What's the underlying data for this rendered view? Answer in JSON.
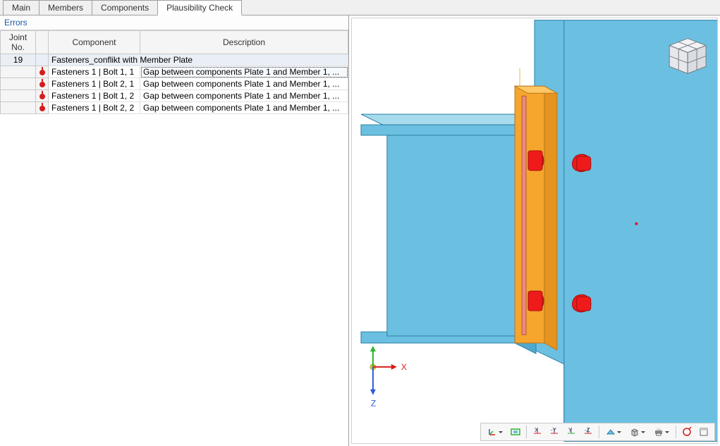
{
  "tabs": [
    "Main",
    "Members",
    "Components",
    "Plausibility Check"
  ],
  "active_tab": 3,
  "panel_title": "Errors",
  "columns": {
    "joint": "Joint\nNo.",
    "component": "Component",
    "description": "Description"
  },
  "group_row": {
    "joint": "19",
    "label": "Fasteners_conflikt with Member Plate"
  },
  "rows": [
    {
      "component": "Fasteners 1 | Bolt 1, 1",
      "description": "Gap between components Plate 1 and Member 1, ...",
      "selected": true
    },
    {
      "component": "Fasteners 1 | Bolt 2, 1",
      "description": "Gap between components Plate 1 and Member 1, ..."
    },
    {
      "component": "Fasteners 1 | Bolt 1, 2",
      "description": "Gap between components Plate 1 and Member 1, ..."
    },
    {
      "component": "Fasteners 1 | Bolt 2, 2",
      "description": "Gap between components Plate 1 and Member 1, ..."
    }
  ],
  "axes": {
    "x_label": "X",
    "z_label": "Z"
  },
  "colors": {
    "steel_fill": "#6bc0e2",
    "steel_stroke": "#2b7fa3",
    "flange_top": "#a8dbee",
    "plate_fill": "#f6a52d",
    "plate_stroke": "#b9781f",
    "bolt_fill": "#ef1b1b",
    "accent_red_dot": "#d81b1b",
    "gold_line": "#d9c24a",
    "axis_x": "#d81b1b",
    "axis_y": "#2bb52b",
    "axis_z": "#2b5bd8",
    "nav_cube_face": "#e6e8ec",
    "nav_cube_edge": "#7a7f87"
  },
  "toolbar_icons": [
    "axis-icon",
    "dropdown",
    "fit-view-icon",
    "sep",
    "view-x-icon",
    "view-y-neg-icon",
    "view-y-pos-icon",
    "view-z-neg-icon",
    "sep",
    "display-mode-icon",
    "dropdown",
    "box-icon",
    "dropdown",
    "print-icon",
    "dropdown",
    "sep",
    "reset-icon",
    "window-icon"
  ]
}
